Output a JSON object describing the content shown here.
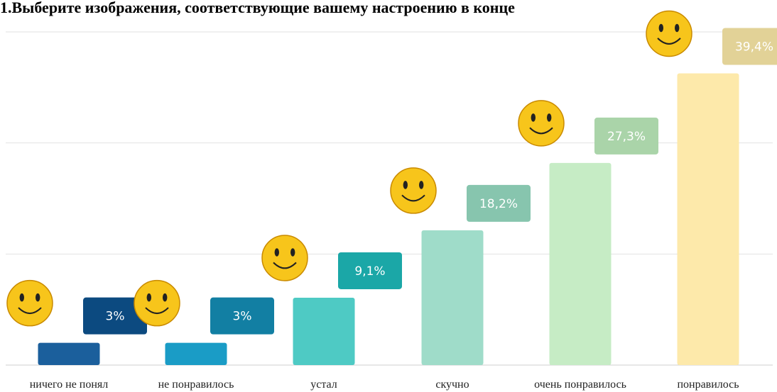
{
  "chart_data": {
    "type": "bar",
    "title": "1.Выберите изображения, соответствующие вашему настроению в конце",
    "categories": [
      "ничего не понял",
      "не понравилось",
      "устал",
      "скучно",
      "очень понравилось",
      "понравилось"
    ],
    "values": [
      3,
      3,
      9.1,
      18.2,
      27.3,
      39.4
    ],
    "value_labels": [
      "3%",
      "3%",
      "9,1%",
      "18,2%",
      "27,3%",
      "39,4%"
    ],
    "colors": [
      "#1b5f9c",
      "#1a9cc6",
      "#4ecac4",
      "#9fdcc9",
      "#c6ecc5",
      "#fde9aa"
    ],
    "label_colors": [
      "#0c4a80",
      "#127fa3",
      "#1ba7a7",
      "#87c5ae",
      "#aad4a9",
      "#e2d297"
    ],
    "ylim": [
      0,
      45
    ],
    "yticks": [
      0,
      15,
      30,
      45
    ],
    "grid": true
  }
}
